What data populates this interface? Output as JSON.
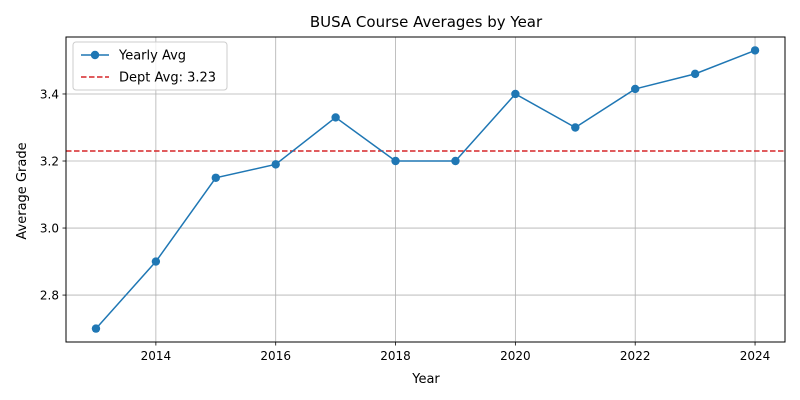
{
  "chart_data": {
    "type": "line",
    "title": "BUSA Course Averages by Year",
    "xlabel": "Year",
    "ylabel": "Average Grade",
    "xlim": [
      2012.5,
      2024.5
    ],
    "ylim": [
      2.66,
      3.57
    ],
    "xticks": [
      2014,
      2016,
      2018,
      2020,
      2022,
      2024
    ],
    "yticks": [
      2.8,
      3.0,
      3.2,
      3.4
    ],
    "grid": true,
    "legend_position": "top-left",
    "series": [
      {
        "name": "Yearly Avg",
        "color": "#1f77b4",
        "x": [
          2013,
          2014,
          2015,
          2016,
          2017,
          2018,
          2019,
          2020,
          2021,
          2022,
          2023,
          2024
        ],
        "y": [
          2.7,
          2.9,
          3.15,
          3.19,
          3.33,
          3.2,
          3.2,
          3.4,
          3.3,
          3.415,
          3.46,
          3.53
        ]
      }
    ],
    "reference_line": {
      "label": "Dept Avg: 3.23",
      "value": 3.23,
      "color": "#d62728",
      "style": "dashed"
    }
  }
}
